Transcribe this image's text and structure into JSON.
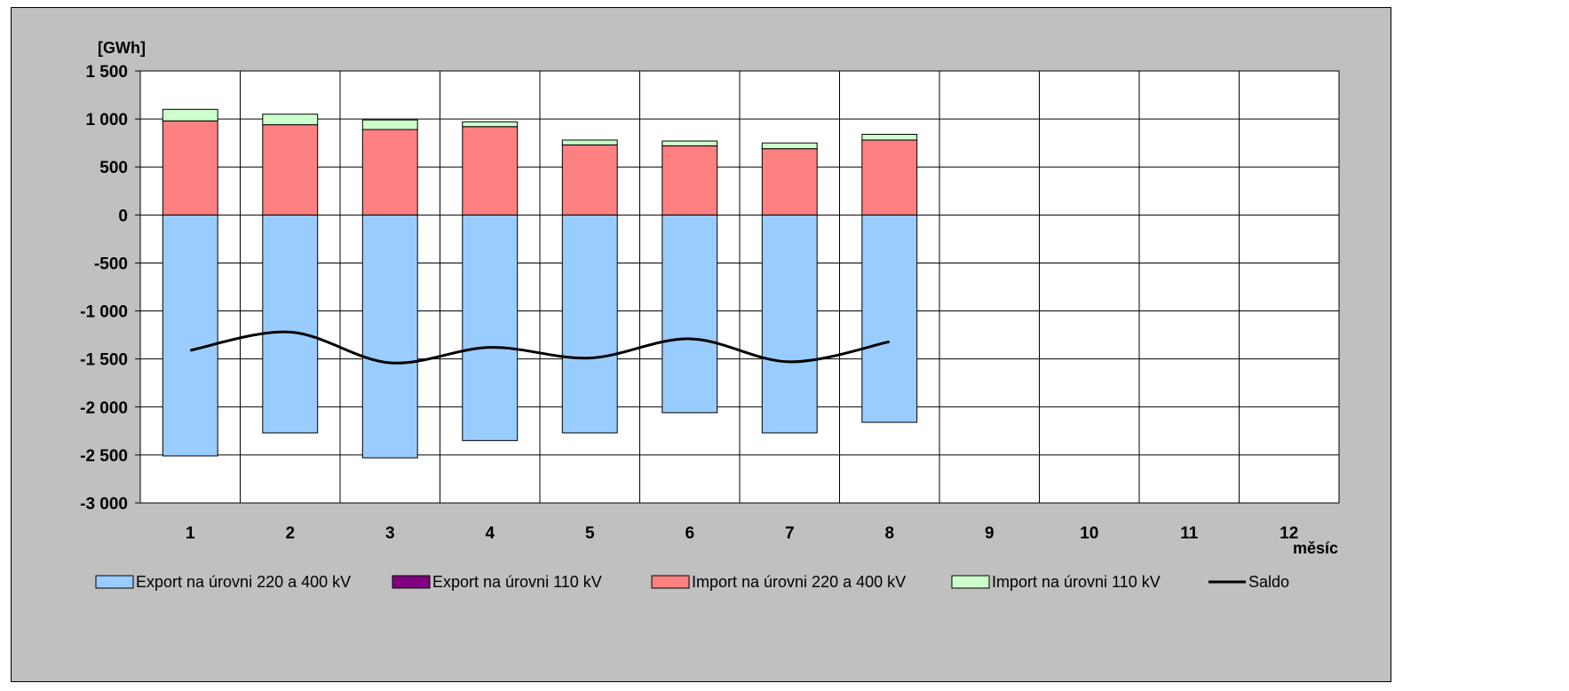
{
  "chart_data": {
    "type": "bar",
    "stacked": true,
    "title": "",
    "ylabel": "[GWh]",
    "xlabel": "měsíc",
    "categories": [
      "1",
      "2",
      "3",
      "4",
      "5",
      "6",
      "7",
      "8",
      "9",
      "10",
      "11",
      "12"
    ],
    "ylim": [
      -3000,
      1500
    ],
    "yticks": [
      1500,
      1000,
      500,
      0,
      -500,
      -1000,
      -1500,
      -2000,
      -2500,
      -3000
    ],
    "ytick_labels": [
      "1 500",
      "1 000",
      "500",
      "0",
      "-500",
      "-1 000",
      "-1 500",
      "-2 000",
      "-2 500",
      "-3 000"
    ],
    "grid": true,
    "legend_position": "bottom",
    "series": [
      {
        "name": "Export na úrovni 220 a 400 kV",
        "kind": "bar",
        "color": "#99ccff",
        "values": [
          -2510,
          -2270,
          -2530,
          -2350,
          -2270,
          -2060,
          -2270,
          -2160,
          null,
          null,
          null,
          null
        ]
      },
      {
        "name": "Export na úrovni 110 kV",
        "kind": "bar",
        "color": "#800080",
        "values": [
          0,
          0,
          0,
          0,
          0,
          0,
          0,
          0,
          null,
          null,
          null,
          null
        ]
      },
      {
        "name": "Import na úrovni 220 a 400 kV",
        "kind": "bar",
        "color": "#ff8080",
        "values": [
          980,
          940,
          890,
          920,
          730,
          720,
          690,
          780,
          null,
          null,
          null,
          null
        ]
      },
      {
        "name": "Import na úrovni 110 kV",
        "kind": "bar",
        "color": "#ccffcc",
        "values": [
          120,
          110,
          100,
          50,
          50,
          50,
          60,
          60,
          null,
          null,
          null,
          null
        ]
      },
      {
        "name": "Saldo",
        "kind": "line",
        "color": "#000000",
        "values": [
          -1410,
          -1220,
          -1540,
          -1380,
          -1490,
          -1290,
          -1530,
          -1320,
          null,
          null,
          null,
          null
        ]
      }
    ]
  }
}
